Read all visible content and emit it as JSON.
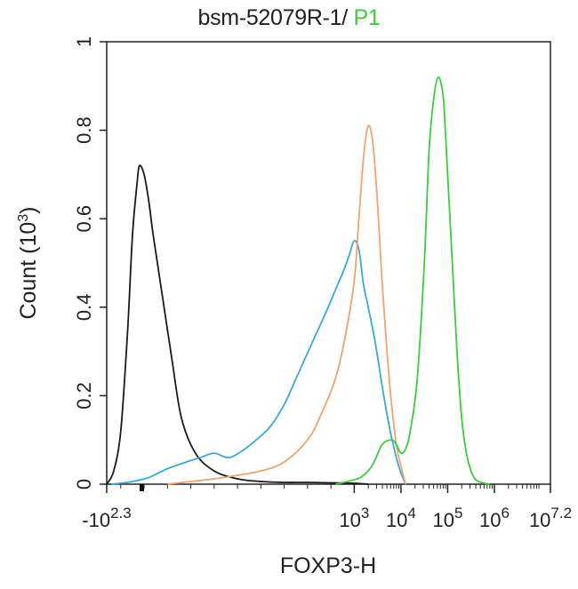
{
  "chart_data": {
    "type": "line",
    "title_main": "bsm-52079R-1/ ",
    "title_gate": "P1",
    "xlabel": "FOXP3-H",
    "ylabel": "Count (10^3)",
    "ylabel_base": "Count (10",
    "ylabel_exp": "3",
    "ylabel_close": ")",
    "xlim": [
      -2.3,
      7.2
    ],
    "ylim": [
      0,
      1
    ],
    "y_ticks": [
      {
        "v": 0,
        "label": "0"
      },
      {
        "v": 0.2,
        "label": "0.2"
      },
      {
        "v": 0.4,
        "label": "0.4"
      },
      {
        "v": 0.6,
        "label": "0.6"
      },
      {
        "v": 0.8,
        "label": "0.8"
      },
      {
        "v": 1,
        "label": "1"
      }
    ],
    "x_ticks": [
      {
        "pos": -2.3,
        "base": "-10",
        "exp": "2.3"
      },
      {
        "pos": 3,
        "base": "10",
        "exp": "3"
      },
      {
        "pos": 4,
        "base": "10",
        "exp": "4"
      },
      {
        "pos": 5,
        "base": "10",
        "exp": "5"
      },
      {
        "pos": 6,
        "base": "10",
        "exp": "6"
      },
      {
        "pos": 7.2,
        "base": "10",
        "exp": "7.2"
      }
    ],
    "series": [
      {
        "name": "black",
        "color": "#1a1a1a",
        "x": [
          -2.3,
          -2.15,
          -2.0,
          -1.85,
          -1.75,
          -1.65,
          -1.6,
          -1.5,
          -1.4,
          -1.3,
          -1.1,
          -0.9,
          -0.7,
          -0.4,
          0,
          0.5,
          1.0,
          1.5,
          2.0,
          2.5,
          3.0,
          3.3
        ],
        "y": [
          0,
          0.03,
          0.12,
          0.35,
          0.56,
          0.68,
          0.72,
          0.7,
          0.64,
          0.56,
          0.42,
          0.28,
          0.15,
          0.07,
          0.03,
          0.012,
          0.006,
          0.004,
          0.004,
          0.003,
          0.002,
          0
        ]
      },
      {
        "name": "blue",
        "color": "#3aa8d8",
        "x": [
          -2.2,
          -1.8,
          -1.4,
          -1.0,
          -0.6,
          -0.3,
          0.0,
          0.3,
          0.6,
          0.9,
          1.2,
          1.5,
          1.8,
          2.1,
          2.4,
          2.6,
          2.8,
          2.9,
          3.0,
          3.1,
          3.2,
          3.3,
          3.45,
          3.6,
          3.75,
          3.9,
          4.0,
          4.1
        ],
        "y": [
          0,
          0.005,
          0.015,
          0.035,
          0.05,
          0.06,
          0.07,
          0.06,
          0.075,
          0.1,
          0.13,
          0.18,
          0.25,
          0.32,
          0.39,
          0.44,
          0.49,
          0.52,
          0.55,
          0.53,
          0.45,
          0.4,
          0.32,
          0.22,
          0.13,
          0.06,
          0.025,
          0
        ]
      },
      {
        "name": "orange",
        "color": "#f0a36a",
        "x": [
          -1.0,
          -0.5,
          0.0,
          0.5,
          1.0,
          1.5,
          2.0,
          2.3,
          2.6,
          2.8,
          3.0,
          3.1,
          3.2,
          3.3,
          3.4,
          3.5,
          3.6,
          3.7,
          3.8,
          3.9,
          4.0,
          4.1
        ],
        "y": [
          0,
          0.006,
          0.012,
          0.02,
          0.03,
          0.05,
          0.1,
          0.16,
          0.24,
          0.33,
          0.46,
          0.6,
          0.74,
          0.81,
          0.77,
          0.63,
          0.45,
          0.3,
          0.18,
          0.09,
          0.04,
          0
        ]
      },
      {
        "name": "green",
        "color": "#3ccc3c",
        "x": [
          2.6,
          3.0,
          3.2,
          3.4,
          3.6,
          3.8,
          3.9,
          4.0,
          4.1,
          4.2,
          4.35,
          4.5,
          4.6,
          4.7,
          4.8,
          4.9,
          4.95,
          5.0,
          5.1,
          5.2,
          5.3,
          5.4,
          5.5,
          5.6,
          5.75,
          5.9
        ],
        "y": [
          0,
          0.01,
          0.02,
          0.045,
          0.09,
          0.1,
          0.09,
          0.07,
          0.08,
          0.12,
          0.24,
          0.5,
          0.75,
          0.87,
          0.92,
          0.88,
          0.8,
          0.7,
          0.5,
          0.3,
          0.15,
          0.07,
          0.03,
          0.01,
          0.003,
          0
        ]
      }
    ]
  }
}
